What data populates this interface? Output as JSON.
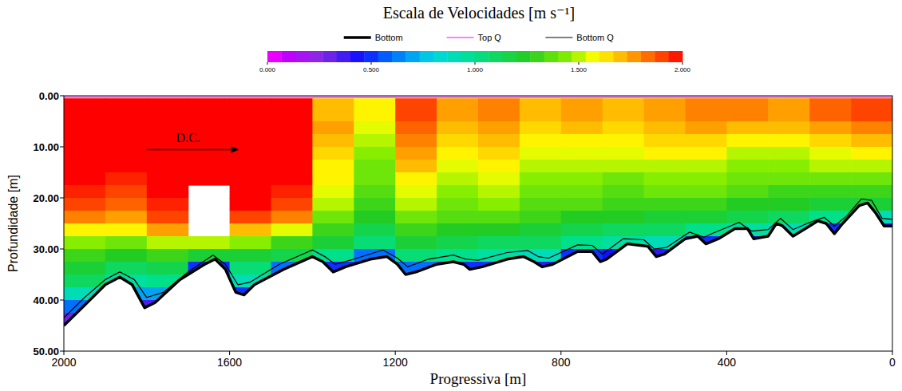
{
  "chart_data": {
    "type": "heatmap",
    "title": "Escala de Velocidades [m s⁻¹]",
    "x_label": "Progressiva [m]",
    "y_label": "Profundidade [m]",
    "xlim": [
      2000,
      0
    ],
    "ylim": [
      0,
      50
    ],
    "xticks": [
      2000,
      1600,
      1200,
      800,
      400,
      0
    ],
    "yticks": [
      {
        "value": 0,
        "label": "0.00"
      },
      {
        "value": 10,
        "label": "10.00"
      },
      {
        "value": 20,
        "label": "20.00"
      },
      {
        "value": 30,
        "label": "30.00"
      },
      {
        "value": 40,
        "label": "40.00"
      },
      {
        "value": 50,
        "label": "50.00"
      }
    ],
    "legend": "top",
    "colorbar": {
      "range": [
        0,
        2
      ],
      "ticks": [
        {
          "value": 0,
          "label": "0.000"
        },
        {
          "value": 0.5,
          "label": "0.500"
        },
        {
          "value": 1,
          "label": "1.000"
        },
        {
          "value": 1.5,
          "label": "1.500"
        },
        {
          "value": 2,
          "label": "2.000"
        }
      ]
    },
    "x_bins": [
      2000,
      1900,
      1800,
      1700,
      1600,
      1500,
      1400,
      1300,
      1200,
      1100,
      1000,
      900,
      800,
      700,
      600,
      500,
      400,
      300,
      200,
      100,
      0
    ],
    "y_bins": [
      0.5,
      5,
      7.5,
      10,
      12.5,
      15,
      17.5,
      20,
      22.5,
      25,
      27.5,
      30,
      32.5,
      35,
      37.5,
      40,
      42.5,
      45
    ],
    "values": [
      [
        2.1,
        2.1,
        2.1,
        2.05,
        2.0,
        2.0,
        1.95,
        1.9,
        1.8,
        1.6,
        1.45,
        1.3,
        1.2,
        1.1,
        0.9,
        0.6,
        0.3
      ],
      [
        2.1,
        2.1,
        2.05,
        2.0,
        2.0,
        1.95,
        1.9,
        1.85,
        1.75,
        1.6,
        1.4,
        1.25,
        1.1,
        0.95,
        0.7,
        0.35,
        null
      ],
      [
        2.2,
        2.15,
        2.1,
        2.1,
        2.05,
        2.0,
        2.0,
        1.95,
        1.9,
        1.75,
        1.5,
        1.3,
        1.15,
        1.0,
        0.7,
        0.35,
        null
      ],
      [
        2.2,
        2.2,
        2.15,
        2.1,
        2.05,
        2.0,
        null,
        null,
        null,
        null,
        1.5,
        1.2,
        0.5,
        0.3,
        null,
        null,
        null
      ],
      [
        2.2,
        2.15,
        2.1,
        2.1,
        2.05,
        2.05,
        2.0,
        2.0,
        1.9,
        1.7,
        1.45,
        1.2,
        1.05,
        0.9,
        0.5,
        null,
        null
      ],
      [
        2.1,
        2.1,
        2.05,
        2.0,
        2.0,
        2.0,
        1.95,
        1.9,
        1.8,
        1.55,
        1.3,
        1.15,
        0.6,
        null,
        null,
        null,
        null
      ],
      [
        1.7,
        1.75,
        1.7,
        1.65,
        1.6,
        1.6,
        1.55,
        1.5,
        1.4,
        1.3,
        1.2,
        1.0,
        0.5,
        null,
        null,
        null,
        null
      ],
      [
        1.6,
        1.55,
        1.5,
        1.45,
        1.4,
        1.4,
        1.35,
        1.3,
        1.25,
        1.15,
        1.05,
        0.6,
        0.4,
        null,
        null,
        null,
        null
      ],
      [
        1.9,
        1.85,
        1.8,
        1.75,
        1.7,
        1.6,
        1.55,
        1.5,
        1.4,
        1.3,
        1.2,
        1.05,
        0.6,
        null,
        null,
        null,
        null
      ],
      [
        1.75,
        1.7,
        1.65,
        1.6,
        1.55,
        1.5,
        1.45,
        1.4,
        1.35,
        1.25,
        1.15,
        1.0,
        0.5,
        null,
        null,
        null,
        null
      ],
      [
        1.8,
        1.75,
        1.7,
        1.65,
        1.6,
        1.55,
        1.5,
        1.45,
        1.35,
        1.25,
        1.1,
        0.95,
        0.5,
        null,
        null,
        null,
        null
      ],
      [
        1.7,
        1.65,
        1.6,
        1.55,
        1.5,
        1.45,
        1.4,
        1.35,
        1.3,
        1.2,
        1.1,
        0.9,
        0.4,
        null,
        null,
        null,
        null
      ],
      [
        1.75,
        1.7,
        1.6,
        1.55,
        1.5,
        1.45,
        1.4,
        1.35,
        1.25,
        1.15,
        1.0,
        0.5,
        0.35,
        null,
        null,
        null,
        null
      ],
      [
        1.7,
        1.65,
        1.6,
        1.55,
        1.5,
        1.4,
        1.35,
        1.3,
        1.25,
        1.1,
        0.95,
        0.45,
        null,
        null,
        null,
        null,
        null
      ],
      [
        1.75,
        1.7,
        1.65,
        1.6,
        1.5,
        1.45,
        1.4,
        1.3,
        1.2,
        1.1,
        0.9,
        0.4,
        null,
        null,
        null,
        null,
        null
      ],
      [
        1.8,
        1.75,
        1.65,
        1.6,
        1.5,
        1.45,
        1.4,
        1.3,
        1.2,
        1.0,
        0.5,
        null,
        null,
        null,
        null,
        null,
        null
      ],
      [
        1.8,
        1.7,
        1.6,
        1.5,
        1.45,
        1.4,
        1.35,
        1.25,
        1.15,
        0.95,
        0.45,
        null,
        null,
        null,
        null,
        null,
        null
      ],
      [
        1.75,
        1.7,
        1.6,
        1.5,
        1.45,
        1.4,
        1.3,
        1.25,
        1.1,
        0.9,
        0.4,
        null,
        null,
        null,
        null,
        null,
        null
      ],
      [
        1.85,
        1.75,
        1.65,
        1.55,
        1.5,
        1.4,
        1.3,
        1.2,
        1.0,
        0.5,
        null,
        null,
        null,
        null,
        null,
        null,
        null
      ],
      [
        1.9,
        1.8,
        1.7,
        1.6,
        1.5,
        1.4,
        1.3,
        1.2,
        0.9,
        0.45,
        null,
        null,
        null,
        null,
        null,
        null,
        null
      ]
    ],
    "series": [
      {
        "name": "Bottom",
        "type": "line",
        "color": "#000000",
        "line_style": "thick",
        "x": [
          2000,
          1950,
          1900,
          1865,
          1835,
          1805,
          1780,
          1720,
          1660,
          1635,
          1610,
          1585,
          1565,
          1540,
          1470,
          1400,
          1375,
          1350,
          1320,
          1260,
          1220,
          1195,
          1175,
          1150,
          1100,
          1060,
          1035,
          1020,
          990,
          930,
          890,
          865,
          845,
          820,
          760,
          725,
          705,
          690,
          640,
          590,
          570,
          550,
          500,
          470,
          450,
          420,
          380,
          350,
          335,
          300,
          280,
          265,
          240,
          210,
          180,
          160,
          140,
          120,
          80,
          60,
          40,
          20,
          0
        ],
        "y": [
          45,
          41,
          37,
          35.5,
          37,
          41.5,
          40.5,
          36,
          33,
          32,
          34,
          38.5,
          39,
          37,
          34,
          31.5,
          32.5,
          34.5,
          33.5,
          32,
          31.5,
          33,
          35,
          34.5,
          33,
          32.5,
          33,
          34,
          33.5,
          32,
          31.5,
          32.5,
          33.5,
          33,
          30.5,
          30.5,
          32.5,
          32,
          29,
          29.5,
          31.5,
          31,
          28,
          27.5,
          29,
          28,
          26,
          26,
          28,
          27.5,
          25,
          25.5,
          27.5,
          26,
          24.5,
          25,
          27,
          25,
          21.5,
          21,
          23,
          25.5,
          25.5
        ]
      },
      {
        "name": "Top Q",
        "type": "line",
        "color": "#ff00ff",
        "line_style": "solid",
        "x": [
          2000,
          0
        ],
        "y": [
          0.3,
          0.3
        ]
      },
      {
        "name": "Bottom Q",
        "type": "line",
        "color": "#000000",
        "line_style": "solid",
        "x": [
          2000,
          1950,
          1900,
          1865,
          1830,
          1800,
          1760,
          1700,
          1640,
          1610,
          1580,
          1550,
          1480,
          1400,
          1370,
          1345,
          1300,
          1230,
          1195,
          1170,
          1120,
          1060,
          1030,
          1000,
          930,
          880,
          855,
          830,
          760,
          725,
          700,
          650,
          600,
          575,
          545,
          490,
          455,
          430,
          370,
          340,
          300,
          270,
          240,
          200,
          165,
          140,
          110,
          75,
          50,
          25,
          0
        ],
        "y": [
          43.5,
          39.5,
          36,
          34.5,
          36,
          39.5,
          38.5,
          34.5,
          31.2,
          33,
          37,
          36.5,
          33,
          30.2,
          31.5,
          33,
          32,
          30.2,
          31.8,
          33.5,
          32,
          31.2,
          32,
          32.2,
          30.7,
          30.3,
          31.5,
          31.8,
          29.2,
          29.3,
          31,
          28,
          28.2,
          30,
          29.7,
          26.7,
          27.7,
          26.8,
          24.8,
          26.5,
          26.2,
          24,
          26.2,
          24.8,
          23.8,
          25.5,
          23.5,
          20.2,
          20.5,
          24,
          24.2
        ]
      }
    ],
    "annotations": [
      {
        "text": "D.C.",
        "x": 1700,
        "y": 9
      }
    ]
  }
}
